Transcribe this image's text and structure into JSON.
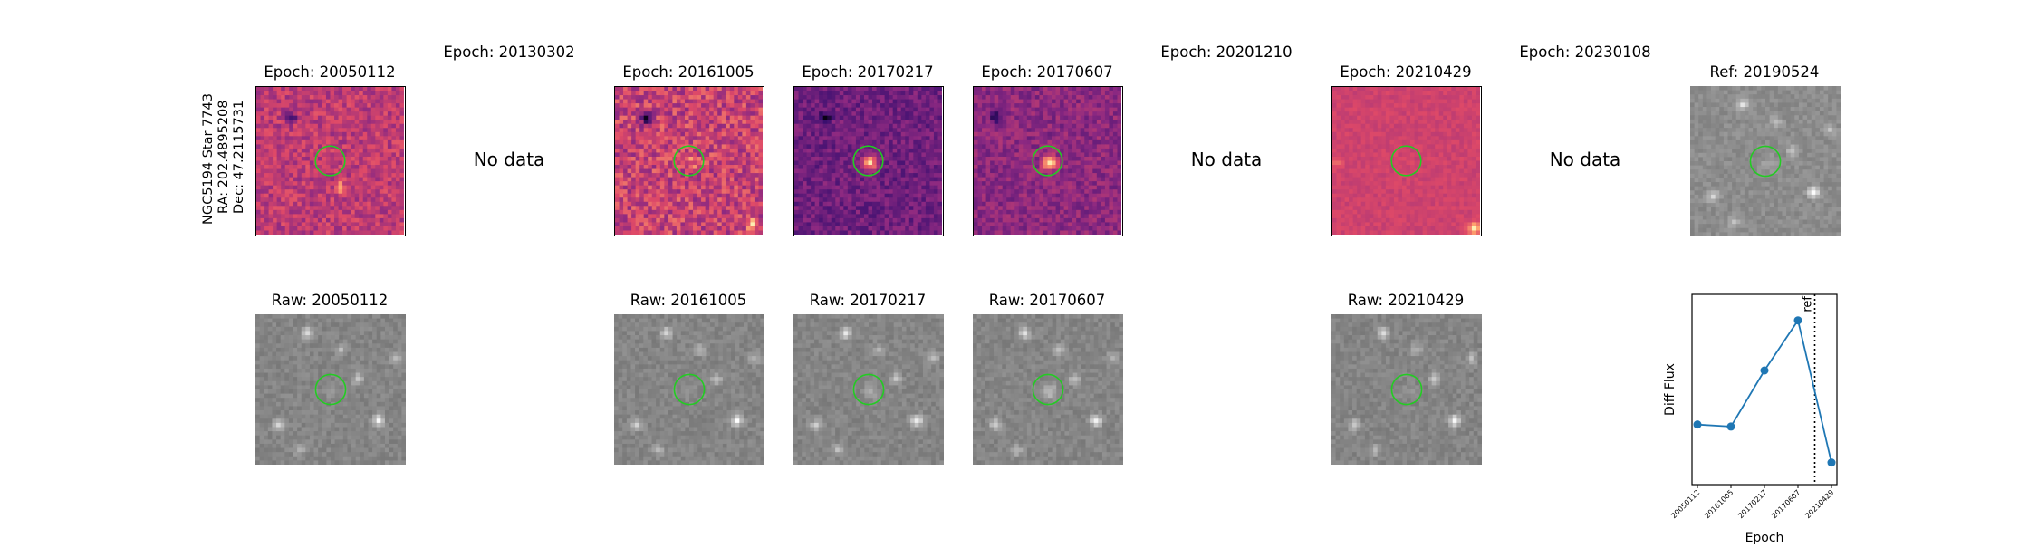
{
  "star_info": {
    "line1": "NGC5194 Star 7743",
    "line2": "RA: 202.4895208",
    "line3": "Dec: 47.2115731"
  },
  "diff_row": [
    {
      "title": "Epoch: 20050112",
      "has_data": true,
      "style": "magenta"
    },
    {
      "title": "Epoch: 20130302",
      "has_data": false,
      "note": "No data"
    },
    {
      "title": "Epoch: 20161005",
      "has_data": true,
      "style": "orange-magenta"
    },
    {
      "title": "Epoch: 20170217",
      "has_data": true,
      "style": "purple"
    },
    {
      "title": "Epoch: 20170607",
      "has_data": true,
      "style": "purple-bright"
    },
    {
      "title": "Epoch: 20201210",
      "has_data": false,
      "note": "No data"
    },
    {
      "title": "Epoch: 20210429",
      "has_data": true,
      "style": "pink"
    },
    {
      "title": "Epoch: 20230108",
      "has_data": false,
      "note": "No data"
    },
    {
      "title": "Ref: 20190524",
      "has_data": true,
      "style": "gray"
    }
  ],
  "raw_row": [
    {
      "title": "Raw: 20050112"
    },
    {
      "title": "Raw: 20161005"
    },
    {
      "title": "Raw: 20170217"
    },
    {
      "title": "Raw: 20170607"
    },
    {
      "title": "Raw: 20210429"
    }
  ],
  "colors": {
    "circle": "#22cc22",
    "line": "#1f77b4",
    "magma_dark": "#3b0f70",
    "magma_mid": "#b73779",
    "magma_light": "#fc8961"
  },
  "chart_data": {
    "type": "line",
    "xlabel": "Epoch",
    "ylabel": "Diff Flux",
    "x": [
      "20050112",
      "20161005",
      "20170217",
      "20170607",
      "20210429"
    ],
    "values": [
      0.35,
      0.34,
      0.62,
      0.87,
      0.16
    ],
    "ylim": [
      0.05,
      1.0
    ],
    "ref_line": {
      "label": "ref",
      "position_between": [
        "20170607",
        "20210429"
      ],
      "fraction": 0.5
    },
    "yticks_visible": false,
    "grid": false,
    "marker": "circle"
  }
}
